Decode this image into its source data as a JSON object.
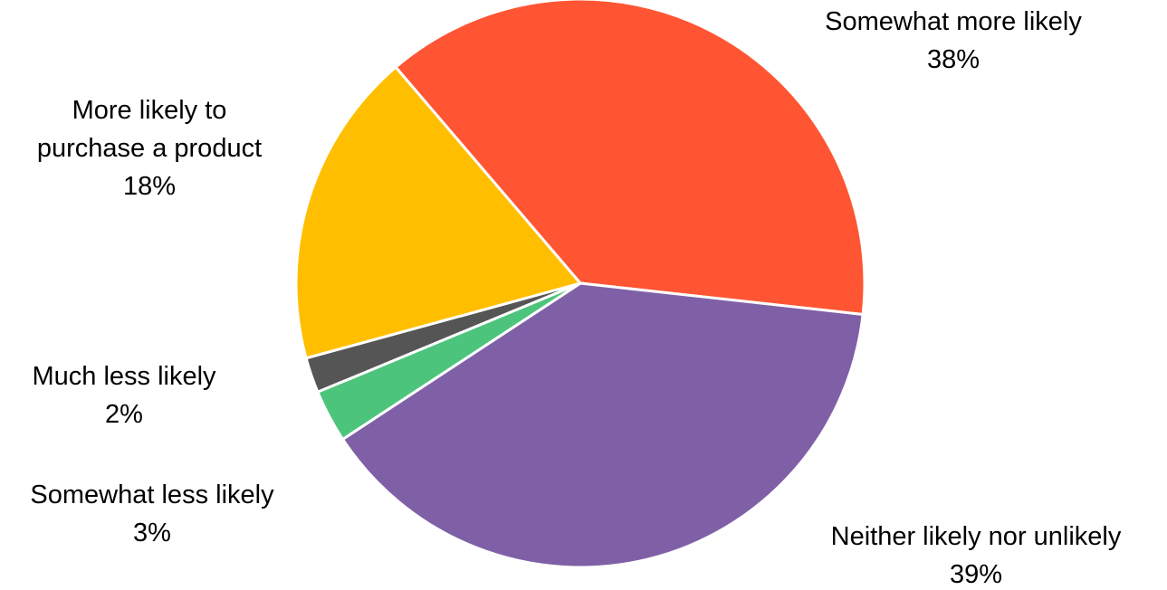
{
  "chart_data": {
    "type": "pie",
    "title": "",
    "start_angle_deg": -40.5,
    "direction": "clockwise",
    "slices": [
      {
        "label_lines": [
          "Somewhat more likely"
        ],
        "value": 38,
        "value_label": "38%",
        "color": "#FF5533"
      },
      {
        "label_lines": [
          "Neither likely nor unlikely"
        ],
        "value": 39,
        "value_label": "39%",
        "color": "#7F60A7"
      },
      {
        "label_lines": [
          "Somewhat less likely"
        ],
        "value": 3,
        "value_label": "3%",
        "color": "#4DC47C"
      },
      {
        "label_lines": [
          "Much less likely"
        ],
        "value": 2,
        "value_label": "2%",
        "color": "#555555"
      },
      {
        "label_lines": [
          "More likely to",
          "purchase a product"
        ],
        "value": 18,
        "value_label": "18%",
        "color": "#FFBF00"
      }
    ]
  }
}
